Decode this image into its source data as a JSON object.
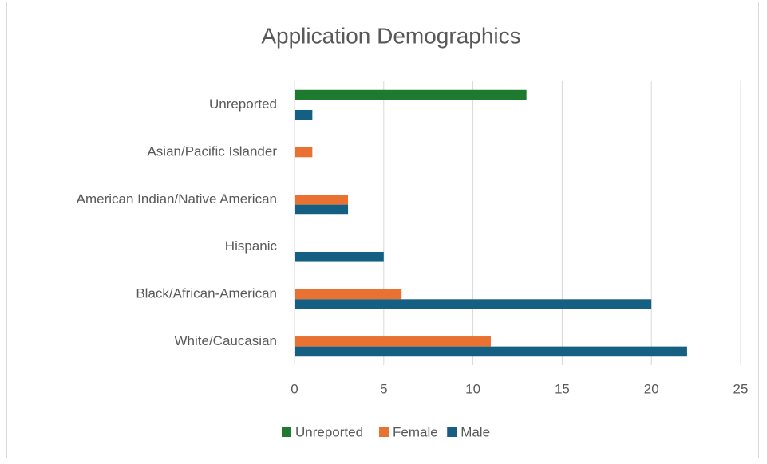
{
  "chart_data": {
    "type": "bar",
    "orientation": "horizontal",
    "title": "Application Demographics",
    "categories": [
      "White/Caucasian",
      "Black/African-American",
      "Hispanic",
      "American Indian/Native American",
      "Asian/Pacific Islander",
      "Unreported"
    ],
    "series": [
      {
        "name": "Unreported",
        "color": "#1e7a2e",
        "values": [
          null,
          null,
          null,
          null,
          null,
          13
        ]
      },
      {
        "name": "Female",
        "color": "#e97132",
        "values": [
          11,
          6,
          null,
          3,
          1,
          null
        ]
      },
      {
        "name": "Male",
        "color": "#156082",
        "values": [
          22,
          20,
          5,
          3,
          null,
          1
        ]
      }
    ],
    "xlim": [
      0,
      25
    ],
    "xticks": [
      0,
      5,
      10,
      15,
      20,
      25
    ],
    "grid": true,
    "legend": "bottom"
  }
}
